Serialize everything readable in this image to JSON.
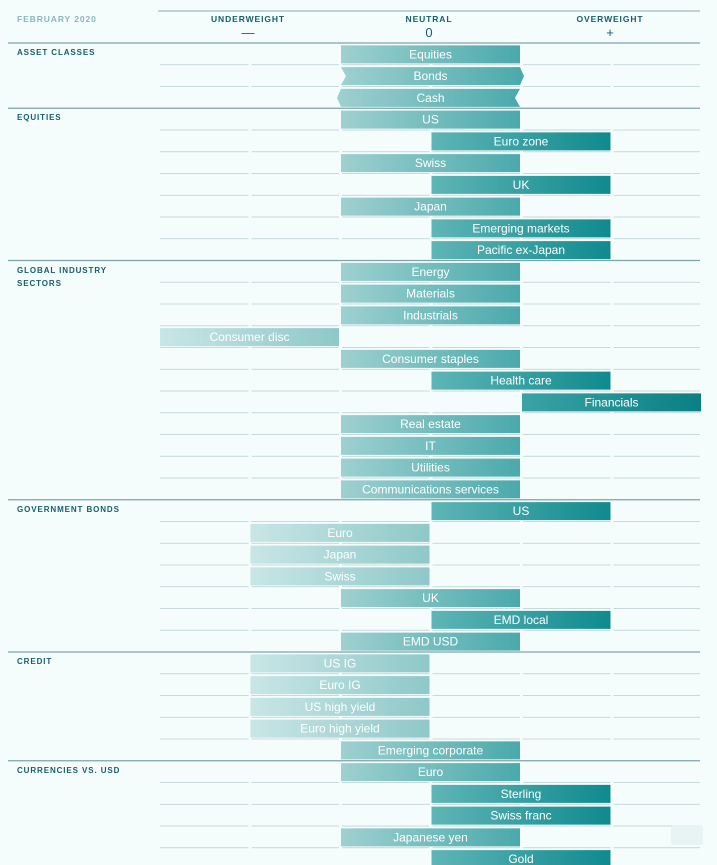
{
  "header": {
    "date": "FEBRUARY 2020",
    "underweight": "UNDERWEIGHT",
    "neutral": "NEUTRAL",
    "overweight": "OVERWEIGHT",
    "minus": "—",
    "zero": "0",
    "plus": "+"
  },
  "colors": {
    "background": "#f4fcfc",
    "accent": "#16606a",
    "bar_light": "#b3dcdc",
    "bar_dark": "#0f8a8e",
    "grid": "#b9cfd1"
  },
  "chart_data": {
    "type": "bar",
    "scale": [
      "-2",
      "-1",
      "0",
      "+1",
      "+2"
    ],
    "sections": [
      {
        "label": "ASSET CLASSES",
        "rows": [
          {
            "name": "Equities",
            "from": -1,
            "to": 1
          },
          {
            "name": "Bonds",
            "from": -1,
            "to": 1,
            "change": "increase"
          },
          {
            "name": "Cash",
            "from": -1,
            "to": 1,
            "change": "decrease"
          }
        ]
      },
      {
        "label": "EQUITIES",
        "rows": [
          {
            "name": "US",
            "from": -1,
            "to": 1
          },
          {
            "name": "Euro zone",
            "from": 0,
            "to": 2
          },
          {
            "name": "Swiss",
            "from": -1,
            "to": 1
          },
          {
            "name": "UK",
            "from": 0,
            "to": 2
          },
          {
            "name": "Japan",
            "from": -1,
            "to": 1
          },
          {
            "name": "Emerging markets",
            "from": 0,
            "to": 2
          },
          {
            "name": "Pacific ex-Japan",
            "from": 0,
            "to": 2
          }
        ]
      },
      {
        "label": "GLOBAL INDUSTRY SECTORS",
        "rows": [
          {
            "name": "Energy",
            "from": -1,
            "to": 1
          },
          {
            "name": "Materials",
            "from": -1,
            "to": 1
          },
          {
            "name": "Industrials",
            "from": -1,
            "to": 1
          },
          {
            "name": "Consumer disc",
            "from": -3,
            "to": -1
          },
          {
            "name": "Consumer staples",
            "from": -1,
            "to": 1
          },
          {
            "name": "Health care",
            "from": 0,
            "to": 2
          },
          {
            "name": "Financials",
            "from": 1,
            "to": 3
          },
          {
            "name": "Real estate",
            "from": -1,
            "to": 1
          },
          {
            "name": "IT",
            "from": -1,
            "to": 1
          },
          {
            "name": "Utilities",
            "from": -1,
            "to": 1
          },
          {
            "name": "Communications services",
            "from": -1,
            "to": 1
          }
        ]
      },
      {
        "label": "GOVERNMENT BONDS",
        "rows": [
          {
            "name": "US",
            "from": 0,
            "to": 2
          },
          {
            "name": "Euro",
            "from": -2,
            "to": 0
          },
          {
            "name": "Japan",
            "from": -2,
            "to": 0
          },
          {
            "name": "Swiss",
            "from": -2,
            "to": 0
          },
          {
            "name": "UK",
            "from": -1,
            "to": 1
          },
          {
            "name": "EMD local",
            "from": 0,
            "to": 2
          },
          {
            "name": "EMD USD",
            "from": -1,
            "to": 1
          }
        ]
      },
      {
        "label": "CREDIT",
        "rows": [
          {
            "name": "US IG",
            "from": -2,
            "to": 0
          },
          {
            "name": "Euro IG",
            "from": -2,
            "to": 0
          },
          {
            "name": "US high yield",
            "from": -2,
            "to": 0
          },
          {
            "name": "Euro high yield",
            "from": -2,
            "to": 0
          },
          {
            "name": "Emerging corporate",
            "from": -1,
            "to": 1
          }
        ]
      },
      {
        "label": "CURRENCIES VS. USD",
        "rows": [
          {
            "name": "Euro",
            "from": -1,
            "to": 1
          },
          {
            "name": "Sterling",
            "from": 0,
            "to": 2
          },
          {
            "name": "Swiss franc",
            "from": 0,
            "to": 2
          },
          {
            "name": "Japanese yen",
            "from": -1,
            "to": 1
          },
          {
            "name": "Gold",
            "from": 0,
            "to": 2
          }
        ]
      }
    ]
  }
}
